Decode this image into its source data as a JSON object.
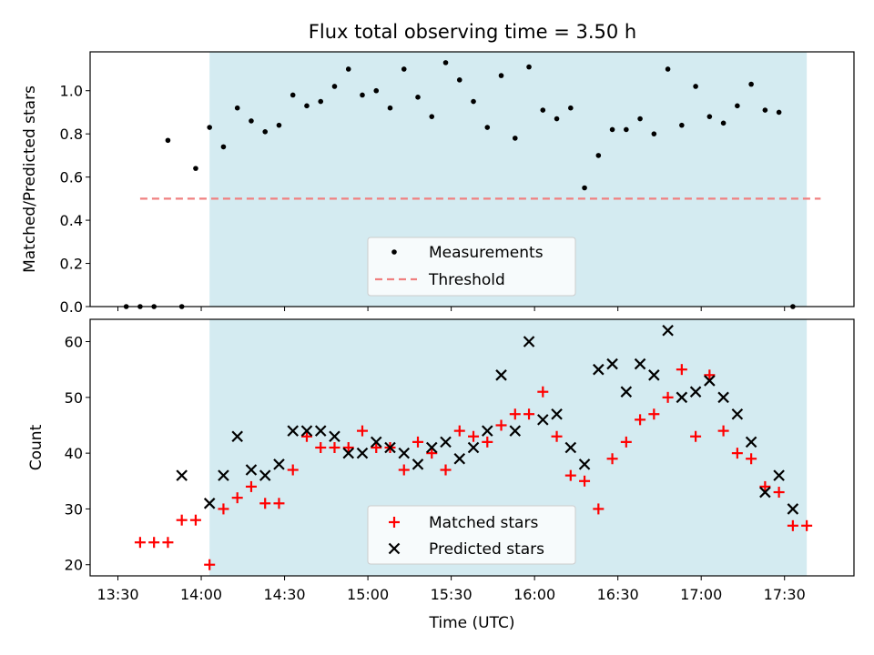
{
  "chart_data": [
    {
      "type": "scatter",
      "title": "Flux total observing time = 3.50 h",
      "xlabel": "",
      "ylabel": "Matched/Predicted stars",
      "ylim": [
        0,
        1.18
      ],
      "yticks": [
        "0.0",
        "0.2",
        "0.4",
        "0.6",
        "0.8",
        "1.0"
      ],
      "xlim_minutes": [
        800,
        1075
      ],
      "shaded_span_minutes": [
        843,
        1058
      ],
      "shaded_color": "#d4ebf1",
      "legend_position": "lower center",
      "threshold": {
        "name": "Threshold",
        "value": 0.5,
        "x_range_minutes": [
          818,
          1063
        ],
        "color": "#f08080"
      },
      "series": [
        {
          "name": "Measurements",
          "color": "#000000",
          "points": [
            [
              813,
              0.0
            ],
            [
              818,
              0.0
            ],
            [
              823,
              0.0
            ],
            [
              828,
              0.77
            ],
            [
              833,
              0.0
            ],
            [
              838,
              0.64
            ],
            [
              843,
              0.83
            ],
            [
              848,
              0.74
            ],
            [
              853,
              0.92
            ],
            [
              858,
              0.86
            ],
            [
              863,
              0.81
            ],
            [
              868,
              0.84
            ],
            [
              873,
              0.98
            ],
            [
              878,
              0.93
            ],
            [
              883,
              0.95
            ],
            [
              888,
              1.02
            ],
            [
              893,
              1.1
            ],
            [
              898,
              0.98
            ],
            [
              903,
              1.0
            ],
            [
              908,
              0.92
            ],
            [
              913,
              1.1
            ],
            [
              918,
              0.97
            ],
            [
              923,
              0.88
            ],
            [
              928,
              1.13
            ],
            [
              933,
              1.05
            ],
            [
              938,
              0.95
            ],
            [
              943,
              0.83
            ],
            [
              948,
              1.07
            ],
            [
              953,
              0.78
            ],
            [
              958,
              1.11
            ],
            [
              963,
              0.91
            ],
            [
              968,
              0.87
            ],
            [
              973,
              0.92
            ],
            [
              978,
              0.55
            ],
            [
              983,
              0.7
            ],
            [
              988,
              0.82
            ],
            [
              993,
              0.82
            ],
            [
              998,
              0.87
            ],
            [
              1003,
              0.8
            ],
            [
              1008,
              1.1
            ],
            [
              1013,
              0.84
            ],
            [
              1018,
              1.02
            ],
            [
              1023,
              0.88
            ],
            [
              1028,
              0.85
            ],
            [
              1033,
              0.93
            ],
            [
              1038,
              1.03
            ],
            [
              1043,
              0.91
            ],
            [
              1048,
              0.9
            ],
            [
              1053,
              0.0
            ]
          ]
        }
      ]
    },
    {
      "type": "scatter",
      "title": "",
      "xlabel": "Time (UTC)",
      "ylabel": "Count",
      "ylim": [
        18,
        64
      ],
      "yticks": [
        "20",
        "30",
        "40",
        "50",
        "60"
      ],
      "xlim_minutes": [
        800,
        1075
      ],
      "xticks": [
        {
          "minutes": 810,
          "label": "13:30"
        },
        {
          "minutes": 840,
          "label": "14:00"
        },
        {
          "minutes": 870,
          "label": "14:30"
        },
        {
          "minutes": 900,
          "label": "15:00"
        },
        {
          "minutes": 930,
          "label": "15:30"
        },
        {
          "minutes": 960,
          "label": "16:00"
        },
        {
          "minutes": 990,
          "label": "16:30"
        },
        {
          "minutes": 1020,
          "label": "17:00"
        },
        {
          "minutes": 1050,
          "label": "17:30"
        }
      ],
      "shaded_span_minutes": [
        843,
        1058
      ],
      "shaded_color": "#d4ebf1",
      "legend_position": "lower center",
      "series": [
        {
          "name": "Matched stars",
          "marker": "plus",
          "color": "#ff0000",
          "points": [
            [
              818,
              24
            ],
            [
              823,
              24
            ],
            [
              828,
              24
            ],
            [
              833,
              28
            ],
            [
              838,
              28
            ],
            [
              843,
              20
            ],
            [
              848,
              30
            ],
            [
              853,
              32
            ],
            [
              858,
              34
            ],
            [
              863,
              31
            ],
            [
              868,
              31
            ],
            [
              873,
              37
            ],
            [
              878,
              43
            ],
            [
              883,
              41
            ],
            [
              888,
              41
            ],
            [
              893,
              41
            ],
            [
              898,
              44
            ],
            [
              903,
              41
            ],
            [
              908,
              41
            ],
            [
              913,
              37
            ],
            [
              918,
              42
            ],
            [
              923,
              40
            ],
            [
              928,
              37
            ],
            [
              933,
              44
            ],
            [
              938,
              43
            ],
            [
              943,
              42
            ],
            [
              948,
              45
            ],
            [
              953,
              47
            ],
            [
              958,
              47
            ],
            [
              963,
              51
            ],
            [
              968,
              43
            ],
            [
              973,
              36
            ],
            [
              978,
              35
            ],
            [
              983,
              30
            ],
            [
              988,
              39
            ],
            [
              993,
              42
            ],
            [
              998,
              46
            ],
            [
              1003,
              47
            ],
            [
              1008,
              50
            ],
            [
              1013,
              55
            ],
            [
              1018,
              43
            ],
            [
              1023,
              54
            ],
            [
              1028,
              44
            ],
            [
              1033,
              40
            ],
            [
              1038,
              39
            ],
            [
              1043,
              34
            ],
            [
              1048,
              33
            ],
            [
              1053,
              27
            ],
            [
              1058,
              27
            ]
          ]
        },
        {
          "name": "Predicted stars",
          "marker": "x",
          "color": "#000000",
          "points": [
            [
              833,
              36
            ],
            [
              843,
              31
            ],
            [
              848,
              36
            ],
            [
              853,
              43
            ],
            [
              858,
              37
            ],
            [
              863,
              36
            ],
            [
              868,
              38
            ],
            [
              873,
              44
            ],
            [
              878,
              44
            ],
            [
              883,
              44
            ],
            [
              888,
              43
            ],
            [
              893,
              40
            ],
            [
              898,
              40
            ],
            [
              903,
              42
            ],
            [
              908,
              41
            ],
            [
              913,
              40
            ],
            [
              918,
              38
            ],
            [
              923,
              41
            ],
            [
              928,
              42
            ],
            [
              933,
              39
            ],
            [
              938,
              41
            ],
            [
              943,
              44
            ],
            [
              948,
              54
            ],
            [
              953,
              44
            ],
            [
              958,
              60
            ],
            [
              963,
              46
            ],
            [
              968,
              47
            ],
            [
              973,
              41
            ],
            [
              978,
              38
            ],
            [
              983,
              55
            ],
            [
              988,
              56
            ],
            [
              993,
              51
            ],
            [
              998,
              56
            ],
            [
              1003,
              54
            ],
            [
              1008,
              62
            ],
            [
              1013,
              50
            ],
            [
              1018,
              51
            ],
            [
              1023,
              53
            ],
            [
              1028,
              50
            ],
            [
              1033,
              47
            ],
            [
              1038,
              42
            ],
            [
              1043,
              33
            ],
            [
              1048,
              36
            ],
            [
              1053,
              30
            ]
          ]
        }
      ]
    }
  ]
}
